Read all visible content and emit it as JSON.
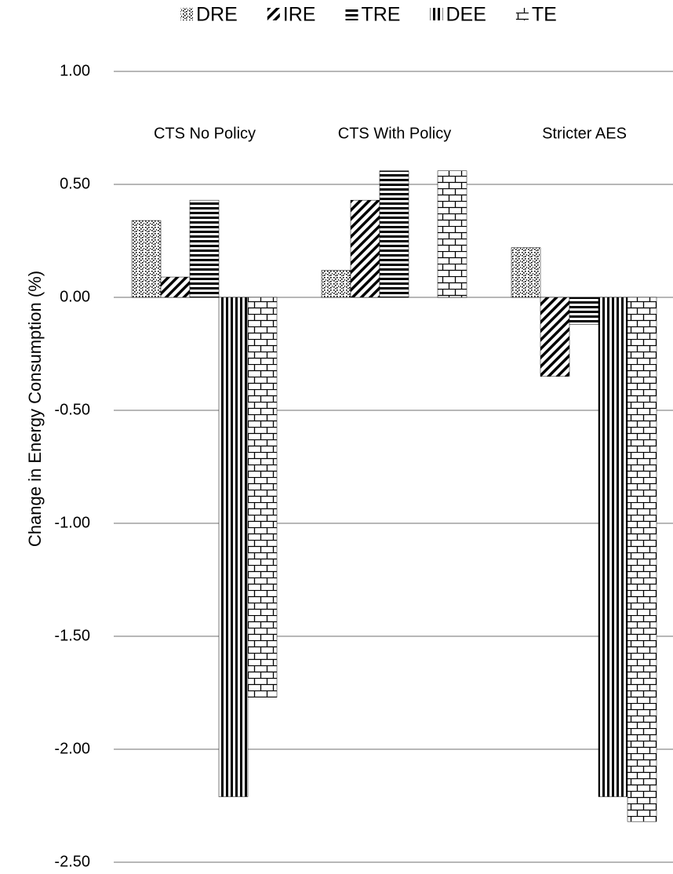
{
  "chart_data": {
    "type": "bar",
    "y_label": "Change in Energy Consumption (%)",
    "categories": [
      "CTS No Policy",
      "CTS With Policy",
      "Stricter AES"
    ],
    "series": [
      {
        "name": "DRE",
        "color": "#000000",
        "pattern": "dots",
        "values": [
          0.34,
          0.12,
          0.22
        ]
      },
      {
        "name": "IRE",
        "color": "#000000",
        "pattern": "diagonal",
        "values": [
          0.09,
          0.43,
          -0.35
        ]
      },
      {
        "name": "TRE",
        "color": "#000000",
        "pattern": "horizontal",
        "values": [
          0.43,
          0.56,
          -0.12
        ]
      },
      {
        "name": "DEE",
        "color": "#000000",
        "pattern": "vertical",
        "values": [
          -2.21,
          0,
          -2.21
        ]
      },
      {
        "name": "TE",
        "color": "#000000",
        "pattern": "brick",
        "values": [
          -1.77,
          0.56,
          -2.32
        ]
      }
    ],
    "ylim": [
      -2.5,
      1
    ],
    "yticks": [
      {
        "value": -2.5,
        "label": "-2.50"
      },
      {
        "value": -2,
        "label": "-2.00"
      },
      {
        "value": -1.5,
        "label": "-1.50"
      },
      {
        "value": -1,
        "label": "-1.00"
      },
      {
        "value": -0.5,
        "label": "-0.50"
      },
      {
        "value": 0,
        "label": "0.00"
      },
      {
        "value": 0.5,
        "label": "0.50"
      },
      {
        "value": 1,
        "label": "1.00"
      }
    ],
    "grid": true,
    "legend": "top"
  }
}
